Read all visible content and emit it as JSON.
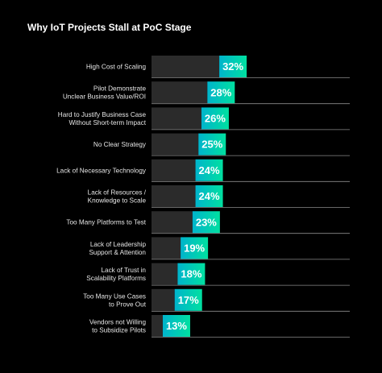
{
  "chart_data": {
    "type": "bar",
    "orientation": "horizontal",
    "title": "Why IoT Projects Stall at PoC Stage",
    "categories": [
      [
        "High Cost of Scaling"
      ],
      [
        "Pilot Demonstrate",
        "Unclear Business Value/ROI"
      ],
      [
        "Hard to Justify Business Case",
        "Without Short-term Impact"
      ],
      [
        "No Clear Strategy"
      ],
      [
        "Lack of Necessary Technology"
      ],
      [
        "Lack of Resources /",
        "Knowledge to Scale"
      ],
      [
        "Too Many Platforms to Test"
      ],
      [
        "Lack of Leadership",
        "Support & Attention"
      ],
      [
        "Lack of Trust in",
        "Scalability Platforms"
      ],
      [
        "Too Many Use Cases",
        "to Prove Out"
      ],
      [
        "Vendors not Willing",
        "to Subsidize Pilots"
      ]
    ],
    "values": [
      32,
      28,
      26,
      25,
      24,
      24,
      23,
      19,
      18,
      17,
      13
    ],
    "value_labels": [
      "32%",
      "28%",
      "26%",
      "25%",
      "24%",
      "24%",
      "23%",
      "19%",
      "18%",
      "17%",
      "13%"
    ],
    "unit": "%",
    "xlabel": "",
    "ylabel": "",
    "grid": false,
    "legend": "none",
    "colors": {
      "background": "#000000",
      "bar_base": "#2b2b2b",
      "gradient_start": "#00b4cc",
      "gradient_end": "#00e0a0",
      "baseline": "#8a8a8a",
      "text": "#e6e6e6",
      "value_text": "#ffffff"
    }
  }
}
